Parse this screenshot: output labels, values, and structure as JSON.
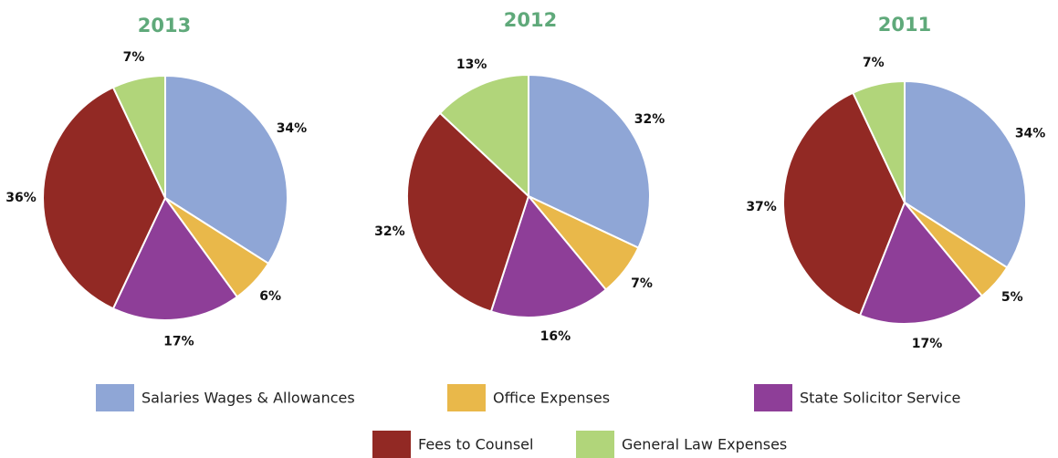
{
  "chart_data": [
    {
      "type": "pie",
      "title": "2013",
      "categories": [
        "Salaries Wages & Allowances",
        "Office Expenses",
        "State Solicitor Service",
        "Fees to Counsel",
        "General Law Expenses"
      ],
      "values": [
        34,
        6,
        17,
        36,
        7
      ],
      "value_labels": [
        "34%",
        "6%",
        "17%",
        "36%",
        "7%"
      ],
      "colors": [
        "#8fa6d6",
        "#e9b84a",
        "#8e3e98",
        "#922924",
        "#b1d57a"
      ]
    },
    {
      "type": "pie",
      "title": "2012",
      "categories": [
        "Salaries Wages & Allowances",
        "Office Expenses",
        "State Solicitor Service",
        "Fees to Counsel",
        "General Law Expenses"
      ],
      "values": [
        32,
        7,
        16,
        32,
        13
      ],
      "value_labels": [
        "32%",
        "7%",
        "16%",
        "32%",
        "13%"
      ],
      "colors": [
        "#8fa6d6",
        "#e9b84a",
        "#8e3e98",
        "#922924",
        "#b1d57a"
      ]
    },
    {
      "type": "pie",
      "title": "2011",
      "categories": [
        "Salaries Wages & Allowances",
        "Office Expenses",
        "State Solicitor Service",
        "Fees to Counsel",
        "General Law Expenses"
      ],
      "values": [
        34,
        5,
        17,
        37,
        7
      ],
      "value_labels": [
        "34%",
        "5%",
        "17%",
        "37%",
        "7%"
      ],
      "colors": [
        "#8fa6d6",
        "#e9b84a",
        "#8e3e98",
        "#922924",
        "#b1d57a"
      ]
    }
  ]
}
